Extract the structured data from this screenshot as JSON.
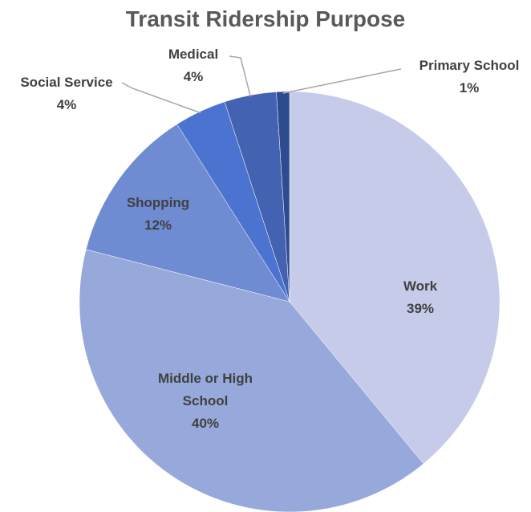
{
  "chart_data": {
    "type": "pie",
    "title": "Transit Ridership Purpose",
    "categories": [
      "Work",
      "Middle or High School",
      "Shopping",
      "Social Service",
      "Medical",
      "Primary School"
    ],
    "values": [
      39,
      40,
      12,
      4,
      4,
      1
    ],
    "value_labels": [
      "39%",
      "40%",
      "12%",
      "4%",
      "4%",
      "1%"
    ],
    "colors": [
      "#c5cbe8",
      "#97a8da",
      "#6f8bd2",
      "#4b73d0",
      "#4462b2",
      "#2f4b8f"
    ]
  }
}
